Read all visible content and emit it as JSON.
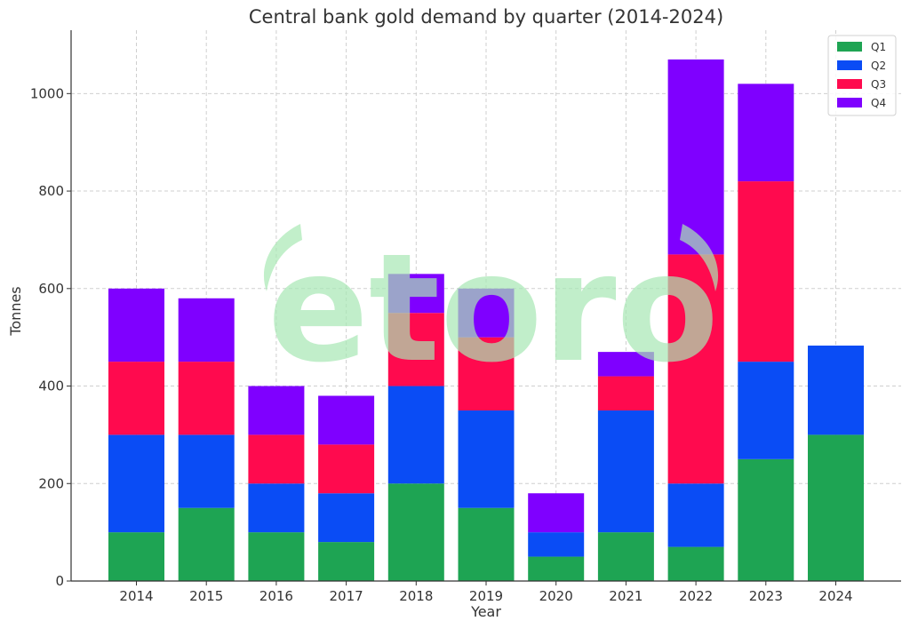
{
  "chart_data": {
    "type": "bar",
    "stacked": true,
    "title": "Central bank gold demand by quarter (2014-2024)",
    "xlabel": "Year",
    "ylabel": "Tonnes",
    "ylim": [
      0,
      1130
    ],
    "yticks": [
      0,
      200,
      400,
      600,
      800,
      1000
    ],
    "grid": true,
    "legend_position": "top-right",
    "categories": [
      "2014",
      "2015",
      "2016",
      "2017",
      "2018",
      "2019",
      "2020",
      "2021",
      "2022",
      "2023",
      "2024"
    ],
    "series": [
      {
        "name": "Q1",
        "color": "#1ea453",
        "values": [
          100,
          150,
          100,
          80,
          200,
          150,
          50,
          100,
          70,
          250,
          300
        ]
      },
      {
        "name": "Q2",
        "color": "#0a4cf5",
        "values": [
          200,
          150,
          100,
          100,
          200,
          200,
          50,
          250,
          130,
          200,
          183
        ]
      },
      {
        "name": "Q3",
        "color": "#ff0a4e",
        "values": [
          150,
          150,
          100,
          100,
          150,
          150,
          0,
          70,
          470,
          370,
          0
        ]
      },
      {
        "name": "Q4",
        "color": "#7f00ff",
        "values": [
          150,
          130,
          100,
          100,
          80,
          100,
          80,
          50,
          400,
          200,
          0
        ]
      }
    ],
    "watermark": "etoro"
  }
}
